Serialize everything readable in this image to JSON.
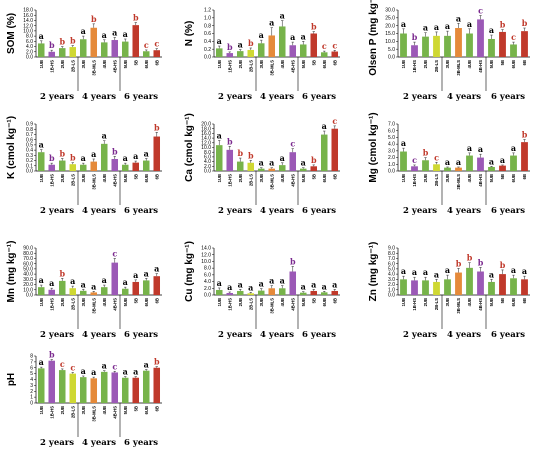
{
  "colors": {
    "UB": "#77b34a",
    "HS": "#9b59b6",
    "LS": "#cfd833",
    "MLS": "#e58a3a",
    "SB": "#c0392b",
    "sig_black": "#000000",
    "sig_red": "#c0392b",
    "sig_purple": "#7b2a8f"
  },
  "groups": [
    "2 years",
    "4 years",
    "6 years"
  ],
  "chart_data": [
    {
      "type": "bar",
      "ylabel": "SOM (%)",
      "ylim": [
        0,
        18
      ],
      "yticks": [
        "0.0",
        "2.0",
        "4.0",
        "6.0",
        "8.0",
        "10.0",
        "12.0",
        "14.0",
        "16.0",
        "18.0"
      ],
      "categories": [
        "1UB",
        "1B-HS",
        "2UB",
        "2B-LS",
        "3UB",
        "3B-MLS",
        "4UB",
        "4B-HS",
        "5UB",
        "5B",
        "6UB",
        "6B"
      ],
      "values": [
        5.2,
        2.0,
        3.4,
        3.8,
        6.8,
        11.2,
        5.6,
        6.5,
        5.9,
        12.2,
        2.2,
        2.6
      ],
      "errors": [
        1.0,
        0.6,
        0.6,
        0.6,
        1.2,
        1.5,
        1.0,
        1.0,
        1.0,
        1.0,
        0.5,
        0.6
      ],
      "letters": [
        "a",
        "b",
        "b",
        "b",
        "a",
        "b",
        "a",
        "a",
        "a",
        "b",
        "c",
        "c"
      ]
    },
    {
      "type": "bar",
      "ylabel": "N (%)",
      "ylim": [
        0,
        1.2
      ],
      "yticks": [
        "0.0",
        "0.2",
        "0.4",
        "0.6",
        "0.8",
        "1.0",
        "1.2"
      ],
      "categories": [
        "1UB",
        "1B-HS",
        "2UB",
        "2B-LS",
        "3UB",
        "3B-MLS",
        "4UB",
        "4B-HS",
        "5UB",
        "5B",
        "6UB",
        "6B"
      ],
      "values": [
        0.22,
        0.1,
        0.15,
        0.18,
        0.35,
        0.55,
        0.78,
        0.3,
        0.32,
        0.6,
        0.12,
        0.14
      ],
      "errors": [
        0.06,
        0.03,
        0.04,
        0.05,
        0.08,
        0.2,
        0.15,
        0.08,
        0.08,
        0.05,
        0.03,
        0.03
      ],
      "letters": [
        "a",
        "b",
        "a",
        "b",
        "a",
        "a",
        "a",
        "a",
        "a",
        "b",
        "c",
        "c"
      ]
    },
    {
      "type": "bar",
      "ylabel": "Olsen P (mg kg⁻¹)",
      "ylim": [
        0,
        30
      ],
      "yticks": [
        "0.0",
        "5.0",
        "10.0",
        "15.0",
        "20.0",
        "25.0",
        "30.0"
      ],
      "categories": [
        "1UB",
        "1B-HS",
        "2UB",
        "2B-LS",
        "3UB",
        "3B-MLS",
        "4UB",
        "4B-HS",
        "5UB",
        "5B",
        "6UB",
        "6B"
      ],
      "values": [
        15.0,
        7.5,
        13.0,
        13.5,
        13.5,
        18.5,
        15.0,
        24.0,
        11.5,
        16.0,
        8.0,
        16.5
      ],
      "errors": [
        3.0,
        2.0,
        2.5,
        2.5,
        3.0,
        3.0,
        3.0,
        2.5,
        2.5,
        1.5,
        1.5,
        2.0
      ],
      "letters": [
        "a",
        "b",
        "a",
        "a",
        "a",
        "a",
        "a",
        "c",
        "a",
        "b",
        "c",
        "b"
      ]
    },
    {
      "type": "bar",
      "ylabel": "K (cmol kg⁻¹)",
      "ylim": [
        0,
        0.9
      ],
      "yticks": [
        "0.0",
        "0.1",
        "0.2",
        "0.3",
        "0.4",
        "0.5",
        "0.6",
        "0.7",
        "0.8",
        "0.9"
      ],
      "categories": [
        "1UB",
        "1B-HS",
        "2UB",
        "2B-LS",
        "3UB",
        "3B-MLS",
        "4UB",
        "4B-HS",
        "5UB",
        "5B",
        "6UB",
        "6B"
      ],
      "values": [
        0.36,
        0.12,
        0.2,
        0.13,
        0.12,
        0.18,
        0.52,
        0.23,
        0.12,
        0.16,
        0.2,
        0.66
      ],
      "errors": [
        0.05,
        0.03,
        0.04,
        0.03,
        0.03,
        0.05,
        0.06,
        0.05,
        0.03,
        0.03,
        0.04,
        0.08
      ],
      "letters": [
        "a",
        "b",
        "b",
        "b",
        "a",
        "a",
        "a",
        "b",
        "a",
        "a",
        "a",
        "b"
      ]
    },
    {
      "type": "bar",
      "ylabel": "Ca (cmol kg⁻¹)",
      "ylim": [
        0,
        20
      ],
      "yticks": [
        "0.0",
        "2.0",
        "4.0",
        "6.0",
        "8.0",
        "10.0",
        "12.0",
        "14.0",
        "16.0",
        "18.0",
        "20.0"
      ],
      "categories": [
        "1UB",
        "1B-HS",
        "2UB",
        "2B-LS",
        "3UB",
        "3B-MLS",
        "4UB",
        "4B-HS",
        "5UB",
        "5B",
        "6UB",
        "6B"
      ],
      "values": [
        11.0,
        9.0,
        4.0,
        3.5,
        1.0,
        1.0,
        2.5,
        8.0,
        1.0,
        2.0,
        15.5,
        18.0
      ],
      "errors": [
        2.0,
        1.5,
        1.5,
        1.0,
        0.4,
        0.4,
        1.0,
        1.5,
        0.4,
        0.6,
        1.5,
        1.2
      ],
      "letters": [
        "a",
        "b",
        "b",
        "b",
        "a",
        "a",
        "a",
        "c",
        "a",
        "b",
        "a",
        "c"
      ]
    },
    {
      "type": "bar",
      "ylabel": "Mg (cmol kg⁻¹)",
      "ylim": [
        0,
        7
      ],
      "yticks": [
        "0.0",
        "1.0",
        "2.0",
        "3.0",
        "4.0",
        "5.0",
        "6.0",
        "7.0"
      ],
      "categories": [
        "1UB",
        "1B-HS",
        "2UB",
        "2B-LS",
        "3UB",
        "3B-MLS",
        "4UB",
        "4B-HS",
        "5UB",
        "5B",
        "6UB",
        "6B"
      ],
      "values": [
        2.9,
        0.7,
        1.6,
        1.0,
        0.5,
        0.5,
        2.3,
        2.0,
        0.6,
        0.8,
        2.3,
        4.3
      ],
      "errors": [
        0.5,
        0.2,
        0.4,
        0.3,
        0.1,
        0.1,
        0.4,
        0.5,
        0.1,
        0.1,
        0.4,
        0.4
      ],
      "letters": [
        "a",
        "c",
        "b",
        "c",
        "a",
        "a",
        "a",
        "a",
        "a",
        "a",
        "a",
        "b"
      ]
    },
    {
      "type": "bar",
      "ylabel": "Mn (mg kg⁻¹)",
      "ylim": [
        0,
        90
      ],
      "yticks": [
        "0.0",
        "10.0",
        "20.0",
        "30.0",
        "40.0",
        "50.0",
        "60.0",
        "70.0",
        "80.0",
        "90.0"
      ],
      "categories": [
        "1UB",
        "1B-HS",
        "2UB",
        "2B-LS",
        "3UB",
        "3B-MLS",
        "4UB",
        "4B-HS",
        "5UB",
        "5B",
        "6UB",
        "6B"
      ],
      "values": [
        15.0,
        10.0,
        27.0,
        13.0,
        8.0,
        5.0,
        15.0,
        62.0,
        12.0,
        25.0,
        28.0,
        36.0
      ],
      "errors": [
        4.0,
        3.0,
        5.0,
        4.0,
        3.0,
        2.0,
        4.0,
        8.0,
        3.0,
        4.0,
        4.0,
        5.0
      ],
      "letters": [
        "a",
        "a",
        "b",
        "a",
        "a",
        "a",
        "a",
        "c",
        "a",
        "a",
        "a",
        "a"
      ]
    },
    {
      "type": "bar",
      "ylabel": "Cu (mg kg⁻¹)",
      "ylim": [
        0,
        14
      ],
      "yticks": [
        "0.0",
        "2.0",
        "4.0",
        "6.0",
        "8.0",
        "10.0",
        "12.0",
        "14.0"
      ],
      "categories": [
        "1UB",
        "1B-HS",
        "2UB",
        "2B-LS",
        "3UB",
        "3B-MLS",
        "4UB",
        "4B-HS",
        "5UB",
        "5B",
        "6UB",
        "6B"
      ],
      "values": [
        1.5,
        0.6,
        1.2,
        0.5,
        1.3,
        2.0,
        2.0,
        7.0,
        0.7,
        1.2,
        0.8,
        1.2
      ],
      "errors": [
        0.6,
        0.3,
        0.5,
        0.3,
        0.6,
        0.8,
        0.8,
        1.5,
        0.3,
        0.5,
        0.3,
        0.5
      ],
      "letters": [
        "a",
        "a",
        "a",
        "a",
        "a",
        "a",
        "a",
        "b",
        "a",
        "a",
        "a",
        "a"
      ]
    },
    {
      "type": "bar",
      "ylabel": "Zn (mg kg⁻¹)",
      "ylim": [
        0,
        9
      ],
      "yticks": [
        "0.0",
        "1.0",
        "2.0",
        "3.0",
        "4.0",
        "5.0",
        "6.0",
        "7.0",
        "8.0",
        "9.0"
      ],
      "categories": [
        "1UB",
        "1B-HS",
        "2UB",
        "2B-LS",
        "3UB",
        "3B-MLS",
        "4UB",
        "4B-HS",
        "5UB",
        "5B",
        "6UB",
        "6B"
      ],
      "values": [
        3.0,
        2.8,
        2.8,
        2.5,
        3.0,
        4.3,
        5.2,
        4.5,
        2.5,
        4.0,
        3.2,
        3.0
      ],
      "errors": [
        0.6,
        0.6,
        0.6,
        0.5,
        0.8,
        0.8,
        1.0,
        0.8,
        0.5,
        0.8,
        0.6,
        0.6
      ],
      "letters": [
        "a",
        "a",
        "a",
        "a",
        "a",
        "b",
        "b",
        "b",
        "a",
        "b",
        "a",
        "a"
      ]
    },
    {
      "type": "bar",
      "ylabel": "pH",
      "ylim": [
        0,
        8
      ],
      "yticks": [
        "0",
        "1",
        "2",
        "3",
        "4",
        "5",
        "6",
        "7",
        "8"
      ],
      "categories": [
        "1UB",
        "1B-HS",
        "2UB",
        "2B-LS",
        "3UB",
        "3B-MLS",
        "4UB",
        "4B-HS",
        "5UB",
        "5B",
        "6UB",
        "6B"
      ],
      "values": [
        5.9,
        7.2,
        5.6,
        5.0,
        4.4,
        4.2,
        5.3,
        5.2,
        4.3,
        4.3,
        5.5,
        6.0
      ],
      "errors": [
        0.2,
        0.2,
        0.2,
        0.2,
        0.2,
        0.2,
        0.2,
        0.2,
        0.2,
        0.2,
        0.2,
        0.2
      ],
      "letters": [
        "a",
        "b",
        "c",
        "c",
        "a",
        "a",
        "a",
        "c",
        "a",
        "a",
        "a",
        "b"
      ]
    }
  ]
}
